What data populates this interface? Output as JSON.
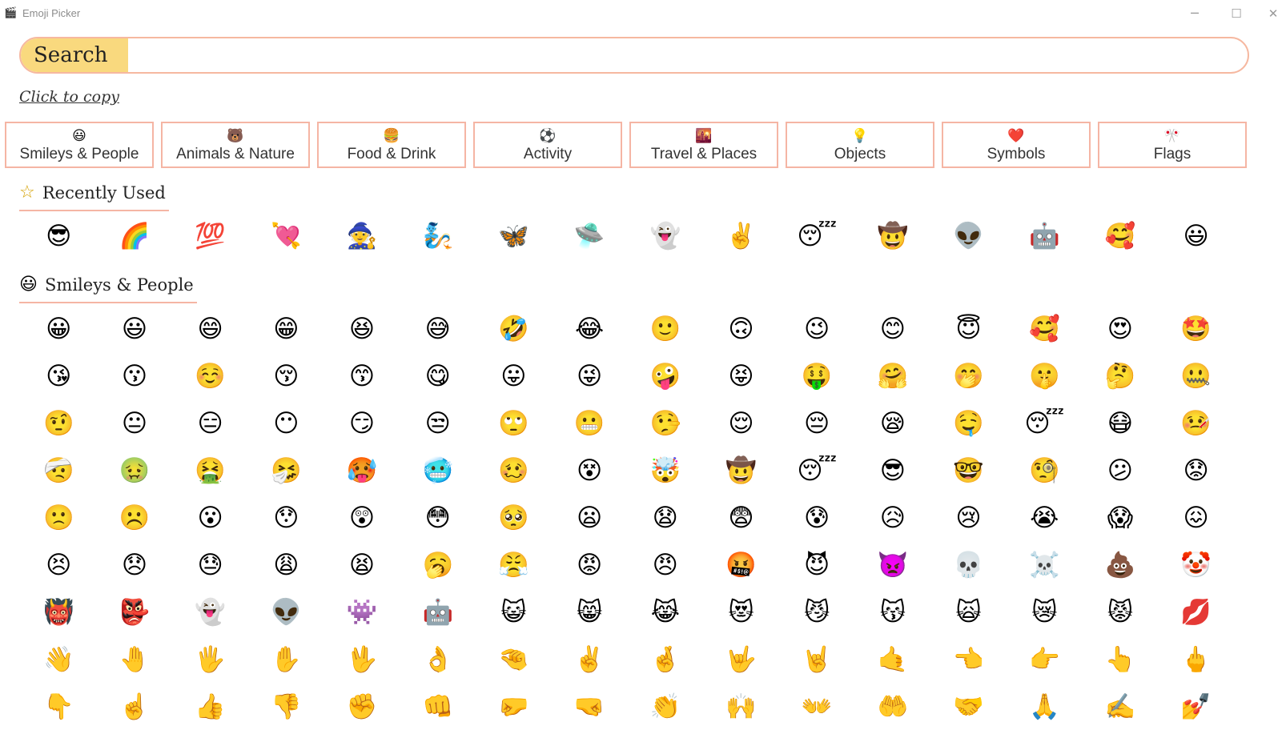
{
  "window": {
    "title": "Emoji Picker",
    "icon": "clapper-icon",
    "controls": {
      "minimize": "─",
      "maximize": "☐",
      "close": "✕"
    }
  },
  "search": {
    "label": "Search",
    "value": "",
    "placeholder": ""
  },
  "copy_hint": "Click to copy",
  "categories": [
    {
      "icon": "😃",
      "label": "Smileys & People"
    },
    {
      "icon": "🐻",
      "label": "Animals & Nature"
    },
    {
      "icon": "🍔",
      "label": "Food & Drink"
    },
    {
      "icon": "⚽",
      "label": "Activity"
    },
    {
      "icon": "🌇",
      "label": "Travel & Places"
    },
    {
      "icon": "💡",
      "label": "Objects"
    },
    {
      "icon": "❤️",
      "label": "Symbols"
    },
    {
      "icon": "🎌",
      "label": "Flags"
    }
  ],
  "recent": {
    "icon": "☆",
    "title": "Recently Used",
    "emojis": [
      "😎",
      "🌈",
      "💯",
      "💘",
      "🧙",
      "🧞",
      "🦋",
      "🛸",
      "👻",
      "✌️",
      "😴",
      "🤠",
      "👽",
      "🤖",
      "🥰",
      "😃"
    ]
  },
  "smileys": {
    "icon": "😃",
    "title": "Smileys & People",
    "emojis": [
      "😀",
      "😃",
      "😄",
      "😁",
      "😆",
      "😅",
      "🤣",
      "😂",
      "🙂",
      "🙃",
      "😉",
      "😊",
      "😇",
      "🥰",
      "😍",
      "🤩",
      "😘",
      "😗",
      "☺️",
      "😚",
      "😙",
      "😋",
      "😛",
      "😜",
      "🤪",
      "😝",
      "🤑",
      "🤗",
      "🤭",
      "🤫",
      "🤔",
      "🤐",
      "🤨",
      "😐",
      "😑",
      "😶",
      "😏",
      "😒",
      "🙄",
      "😬",
      "🤥",
      "😌",
      "😔",
      "😪",
      "🤤",
      "😴",
      "😷",
      "🤒",
      "🤕",
      "🤢",
      "🤮",
      "🤧",
      "🥵",
      "🥶",
      "🥴",
      "😵",
      "🤯",
      "🤠",
      "😴",
      "😎",
      "🤓",
      "🧐",
      "😕",
      "😟",
      "🙁",
      "☹️",
      "😮",
      "😯",
      "😲",
      "😳",
      "🥺",
      "😦",
      "😧",
      "😨",
      "😰",
      "😥",
      "😢",
      "😭",
      "😱",
      "😖",
      "😣",
      "😞",
      "😓",
      "😩",
      "😫",
      "🥱",
      "😤",
      "😡",
      "😠",
      "🤬",
      "😈",
      "👿",
      "💀",
      "☠️",
      "💩",
      "🤡",
      "👹",
      "👺",
      "👻",
      "👽",
      "👾",
      "🤖",
      "😺",
      "😸",
      "😹",
      "😻",
      "😼",
      "😽",
      "🙀",
      "😿",
      "😾",
      "💋",
      "👋",
      "🤚",
      "🖐️",
      "✋",
      "🖖",
      "👌",
      "🤏",
      "✌️",
      "🤞",
      "🤟",
      "🤘",
      "🤙",
      "👈",
      "👉",
      "👆",
      "🖕",
      "👇",
      "☝️",
      "👍",
      "👎",
      "✊",
      "👊",
      "🤛",
      "🤜",
      "👏",
      "🙌",
      "👐",
      "🤲",
      "🤝",
      "🙏",
      "✍️",
      "💅"
    ]
  }
}
